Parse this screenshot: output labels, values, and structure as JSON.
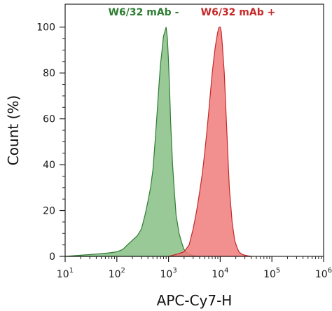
{
  "chart_data": {
    "type": "area",
    "xlabel": "APC-Cy7-H",
    "ylabel": "Count (%)",
    "xscale": "log",
    "xlim": [
      10,
      1000000
    ],
    "ylim": [
      0,
      110
    ],
    "x_ticks": [
      {
        "value": 10,
        "base": "10",
        "exp": "1"
      },
      {
        "value": 100,
        "base": "10",
        "exp": "2"
      },
      {
        "value": 1000,
        "base": "10",
        "exp": "3"
      },
      {
        "value": 10000,
        "base": "10",
        "exp": "4"
      },
      {
        "value": 100000,
        "base": "10",
        "exp": "5"
      },
      {
        "value": 1000000,
        "base": "10",
        "exp": "6"
      }
    ],
    "y_ticks": [
      {
        "value": 0,
        "label": "0"
      },
      {
        "value": 20,
        "label": "20"
      },
      {
        "value": 40,
        "label": "40"
      },
      {
        "value": 60,
        "label": "60"
      },
      {
        "value": 80,
        "label": "80"
      },
      {
        "value": 100,
        "label": "100"
      }
    ],
    "grid": false,
    "legend_position": "top",
    "series": [
      {
        "name": "W6/32 mAb -",
        "color": "#2e7d32",
        "fill": "#86c085",
        "x": [
          10,
          20,
          40,
          70,
          100,
          130,
          160,
          200,
          250,
          300,
          350,
          400,
          450,
          500,
          550,
          600,
          650,
          700,
          750,
          800,
          850,
          900,
          950,
          1000,
          1050,
          1100,
          1200,
          1300,
          1400,
          1600,
          1800,
          2000,
          2300,
          2600,
          3000,
          4000
        ],
        "y": [
          0,
          0.5,
          1,
          1.5,
          2,
          3,
          5,
          7,
          9,
          12,
          18,
          24,
          30,
          38,
          50,
          62,
          74,
          84,
          90,
          96,
          98,
          100,
          95,
          85,
          72,
          58,
          40,
          28,
          18,
          10,
          6,
          3,
          1.5,
          0.8,
          0.3,
          0
        ]
      },
      {
        "name": "W6/32 mAb +",
        "color": "#c62828",
        "fill": "#f07c7c",
        "x": [
          1000,
          1500,
          2000,
          2500,
          3000,
          3500,
          4000,
          4500,
          5000,
          5500,
          6000,
          6500,
          7000,
          7500,
          8000,
          8500,
          9000,
          9500,
          10000,
          10500,
          11000,
          12000,
          13000,
          14000,
          15000,
          17000,
          19000,
          21000,
          23000,
          26000,
          30000,
          35000,
          40000
        ],
        "y": [
          0,
          1,
          2,
          5,
          12,
          20,
          28,
          36,
          45,
          54,
          63,
          72,
          80,
          86,
          91,
          95,
          98,
          100,
          100,
          98,
          92,
          80,
          62,
          45,
          30,
          15,
          7,
          4,
          2,
          1,
          0.5,
          0.2,
          0
        ]
      }
    ]
  }
}
